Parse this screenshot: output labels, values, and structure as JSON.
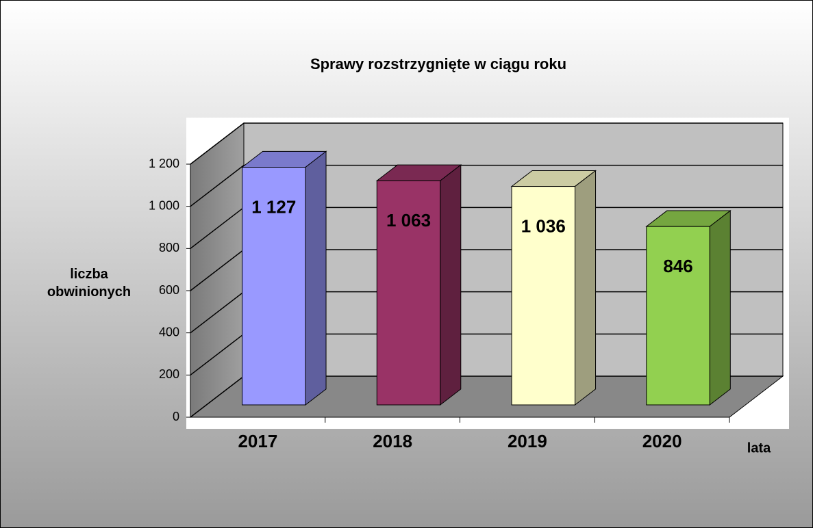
{
  "chart_data": {
    "type": "bar3d",
    "title": "Sprawy rozstrzygnięte w ciągu roku",
    "ylabel": "liczba obwinionych",
    "xlabel": "lata",
    "categories": [
      "2017",
      "2018",
      "2019",
      "2020"
    ],
    "values": [
      1127,
      1063,
      1036,
      846
    ],
    "value_labels": [
      "1 127",
      "1 063",
      "1 036",
      "846"
    ],
    "colors": [
      "#9999ff",
      "#993366",
      "#ffffcc",
      "#92d050"
    ],
    "ylim": [
      0,
      1200
    ],
    "yticks": [
      0,
      200,
      400,
      600,
      800,
      {
        "value": 1000,
        "label": "1 000"
      },
      {
        "value": 1200,
        "label": "1 200"
      }
    ],
    "grid": true
  }
}
